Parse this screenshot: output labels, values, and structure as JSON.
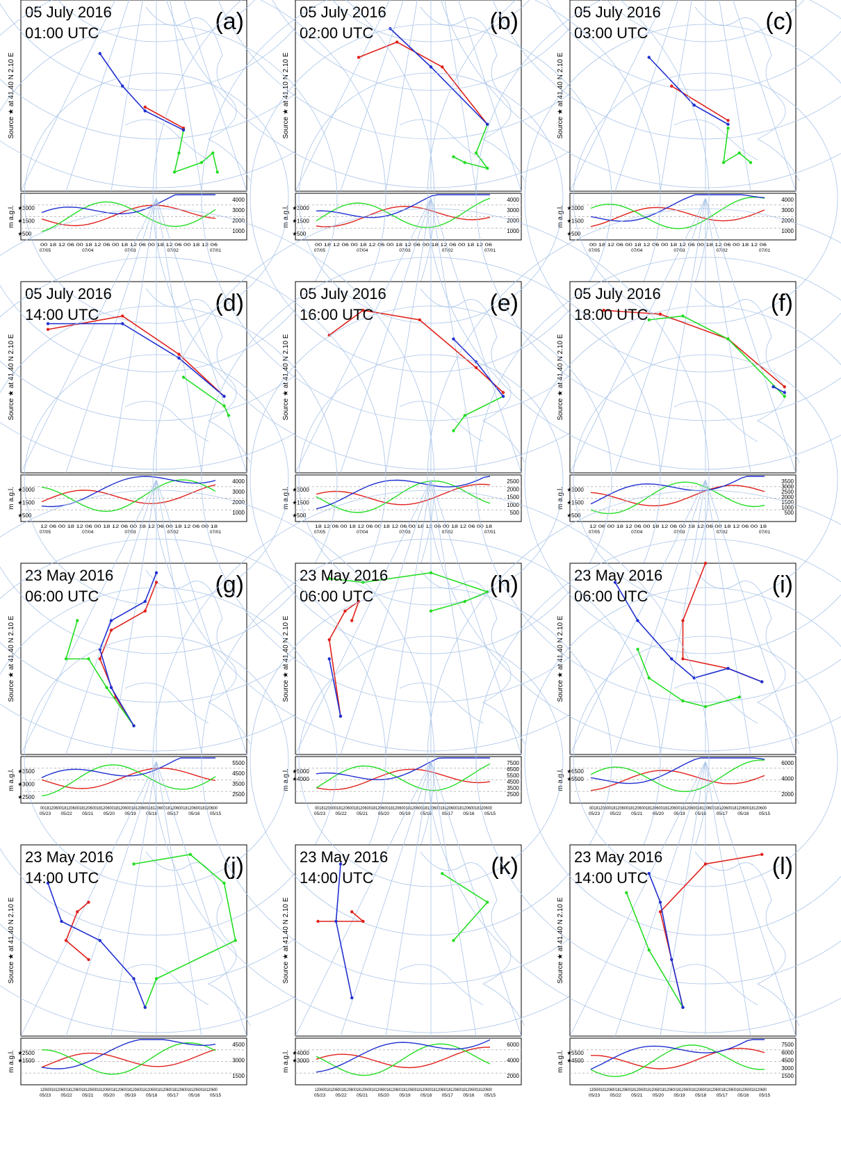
{
  "panels": [
    {
      "label": "(a)",
      "date": "05 July 2016",
      "time": "01:00 UTC",
      "source": "Source ★ at 41.40 N 2.10 E",
      "y_axis_label": "m a.g.l.",
      "left_ticks": [
        "3000",
        "1500",
        "500"
      ],
      "right_ticks": [
        "4000",
        "3000",
        "2000",
        "1000"
      ],
      "x_times": "00 18 12 06 00 18 12 06 00 18 12 06 00 18 12 06 00 18 12 06",
      "x_dates": [
        "07/05",
        "07/04",
        "07/03",
        "07/02",
        "07/01"
      ]
    },
    {
      "label": "(b)",
      "date": "05 July 2016",
      "time": "02:00 UTC",
      "source": "Source ★ at 41.10 N 2.10 E",
      "y_axis_label": "m a.g.l.",
      "left_ticks": [
        "3000",
        "1500",
        "500"
      ],
      "right_ticks": [
        "4000",
        "3000",
        "2000",
        "1000"
      ],
      "x_times": "00 18 12 06 00 18 12 06 00 18 12 06 00 18 12 06 00 18 12 06",
      "x_dates": [
        "07/05",
        "07/04",
        "07/03",
        "07/02",
        "07/01"
      ]
    },
    {
      "label": "(c)",
      "date": "05 July 2016",
      "time": "03:00 UTC",
      "source": "Source ★ at 41.40 N 2.10 E",
      "y_axis_label": "m a.g.l.",
      "left_ticks": [
        "3000",
        "1500",
        "500"
      ],
      "right_ticks": [
        "4000",
        "3000",
        "2000",
        "1000"
      ],
      "x_times": "00 18 12 06 00 18 12 06 00 18 12 06 00 18 12 06 00 18 12 06",
      "x_dates": [
        "07/05",
        "07/04",
        "07/03",
        "07/02",
        "07/01"
      ]
    },
    {
      "label": "(d)",
      "date": "05 July 2016",
      "time": "14:00 UTC",
      "source": "Source ★ at 41.40 N 2.10 E",
      "y_axis_label": "m a.g.l.",
      "left_ticks": [
        "3000",
        "1500",
        "500"
      ],
      "right_ticks": [
        "4000",
        "3000",
        "2000",
        "1000"
      ],
      "x_times": "12 06 00 18 12 06 00 18 12 06 00 18 12 06 00 18 12 06 00 18",
      "x_dates": [
        "07/05",
        "07/04",
        "07/03",
        "07/02",
        "07/01"
      ]
    },
    {
      "label": "(e)",
      "date": "05 July 2016",
      "time": "16:00 UTC",
      "source": "Source ★ at 41.40 N 2.10 E",
      "y_axis_label": "m a.g.l.",
      "left_ticks": [
        "3000",
        "1500",
        "500"
      ],
      "right_ticks": [
        "2500",
        "2000",
        "1500",
        "1000",
        "500"
      ],
      "x_times": "18 12 06 00 18 12 06 00 18 12 06 00 18 12 06 00 18 12 06 00 18",
      "x_dates": [
        "07/05",
        "07/04",
        "07/03",
        "07/02",
        "07/01"
      ]
    },
    {
      "label": "(f)",
      "date": "05 July 2016",
      "time": "18:00 UTC",
      "source": "Source ★ at 41.40 N 2.10 E",
      "y_axis_label": "m a.g.l.",
      "left_ticks": [
        "3000",
        "1500",
        "500"
      ],
      "right_ticks": [
        "3500",
        "3000",
        "2500",
        "2000",
        "1500",
        "1000",
        "500"
      ],
      "x_times": "12 06 00 18 12 06 00 18 12 06 00 18 12 06 00 18 12 06 00 18",
      "x_dates": [
        "07/05",
        "07/04",
        "07/03",
        "07/02",
        "07/01"
      ]
    },
    {
      "label": "(g)",
      "date": "23 May 2016",
      "time": "06:00 UTC",
      "source": "Source ★ at 41.40 N 2.10 E",
      "y_axis_label": "m a.g.l.",
      "left_ticks": [
        "3500",
        "3000",
        "2500"
      ],
      "right_ticks": [
        "5500",
        "4500",
        "3500",
        "2500"
      ],
      "x_times": "0018120600181206001812060018120600181206001812060018120600181206001812060018120600",
      "x_dates": [
        "05/23",
        "05/22",
        "05/21",
        "05/20",
        "05/19",
        "05/18",
        "05/17",
        "05/16",
        "05/15"
      ]
    },
    {
      "label": "(h)",
      "date": "23 May 2016",
      "time": "06:00 UTC",
      "source": "Source ★ at 41.40 N 2.10 E",
      "y_axis_label": "m a.g.l.",
      "left_ticks": [
        "5000",
        "4000"
      ],
      "right_ticks": [
        "7500",
        "6500",
        "5500",
        "4500",
        "3500",
        "2500"
      ],
      "x_times": "0018120600181206001812060018120600181206001812060018120600181206001812060018120600",
      "x_dates": [
        "05/23",
        "05/22",
        "05/21",
        "05/20",
        "05/19",
        "05/18",
        "05/17",
        "05/16",
        "05/15"
      ]
    },
    {
      "label": "(i)",
      "date": "23 May 2016",
      "time": "06:00 UTC",
      "source": "Source ★ at 41.40 N 2.10 E",
      "y_axis_label": "m a.g.l.",
      "left_ticks": [
        "6500",
        "5500"
      ],
      "right_ticks": [
        "6000",
        "4000",
        "2000"
      ],
      "x_times": "0018120600181206001812060018120600181206001812060018120600181206001812060018120600",
      "x_dates": [
        "05/23",
        "05/22",
        "05/21",
        "05/20",
        "05/19",
        "05/18",
        "05/17",
        "05/16",
        "05/15"
      ]
    },
    {
      "label": "(j)",
      "date": "23 May 2016",
      "time": "14:00 UTC",
      "source": "Source ★ at 41.40 N 2.10 E",
      "y_axis_label": "m a.g.l.",
      "left_ticks": [
        "2500",
        "1500"
      ],
      "right_ticks": [
        "4500",
        "3000",
        "1500"
      ],
      "x_times": "1206001812060018120600181206001812060018120600181206001812060018120600181206001812060018120600",
      "x_dates": [
        "05/23",
        "05/22",
        "05/21",
        "05/20",
        "05/19",
        "05/18",
        "05/17",
        "05/16",
        "05/15"
      ]
    },
    {
      "label": "(k)",
      "date": "23 May 2016",
      "time": "14:00 UTC",
      "source": "Source ★ at 41.40 N 2.10 E",
      "y_axis_label": "m a.g.l.",
      "left_ticks": [
        "4000",
        "3000"
      ],
      "right_ticks": [
        "6000",
        "4000",
        "2000"
      ],
      "x_times": "1206001812060018120600181206001812060018120600181206001812060018120600181206001812060018120600",
      "x_dates": [
        "05/23",
        "05/22",
        "05/21",
        "05/20",
        "05/19",
        "05/18",
        "05/17",
        "05/16",
        "05/15"
      ]
    },
    {
      "label": "(l)",
      "date": "23 May 2016",
      "time": "14:00 UTC",
      "source": "Source ★ at 41.40 N 2.10 E",
      "y_axis_label": "m a.g.l.",
      "left_ticks": [
        "5500",
        "4500"
      ],
      "right_ticks": [
        "7500",
        "6000",
        "4500",
        "3000",
        "1500"
      ],
      "x_times": "1206001812060018120600181206001812060018120600181206001812060018120600181206001812060018120600",
      "x_dates": [
        "05/23",
        "05/22",
        "05/21",
        "05/20",
        "05/19",
        "05/18",
        "05/17",
        "05/16",
        "05/15"
      ]
    }
  ]
}
